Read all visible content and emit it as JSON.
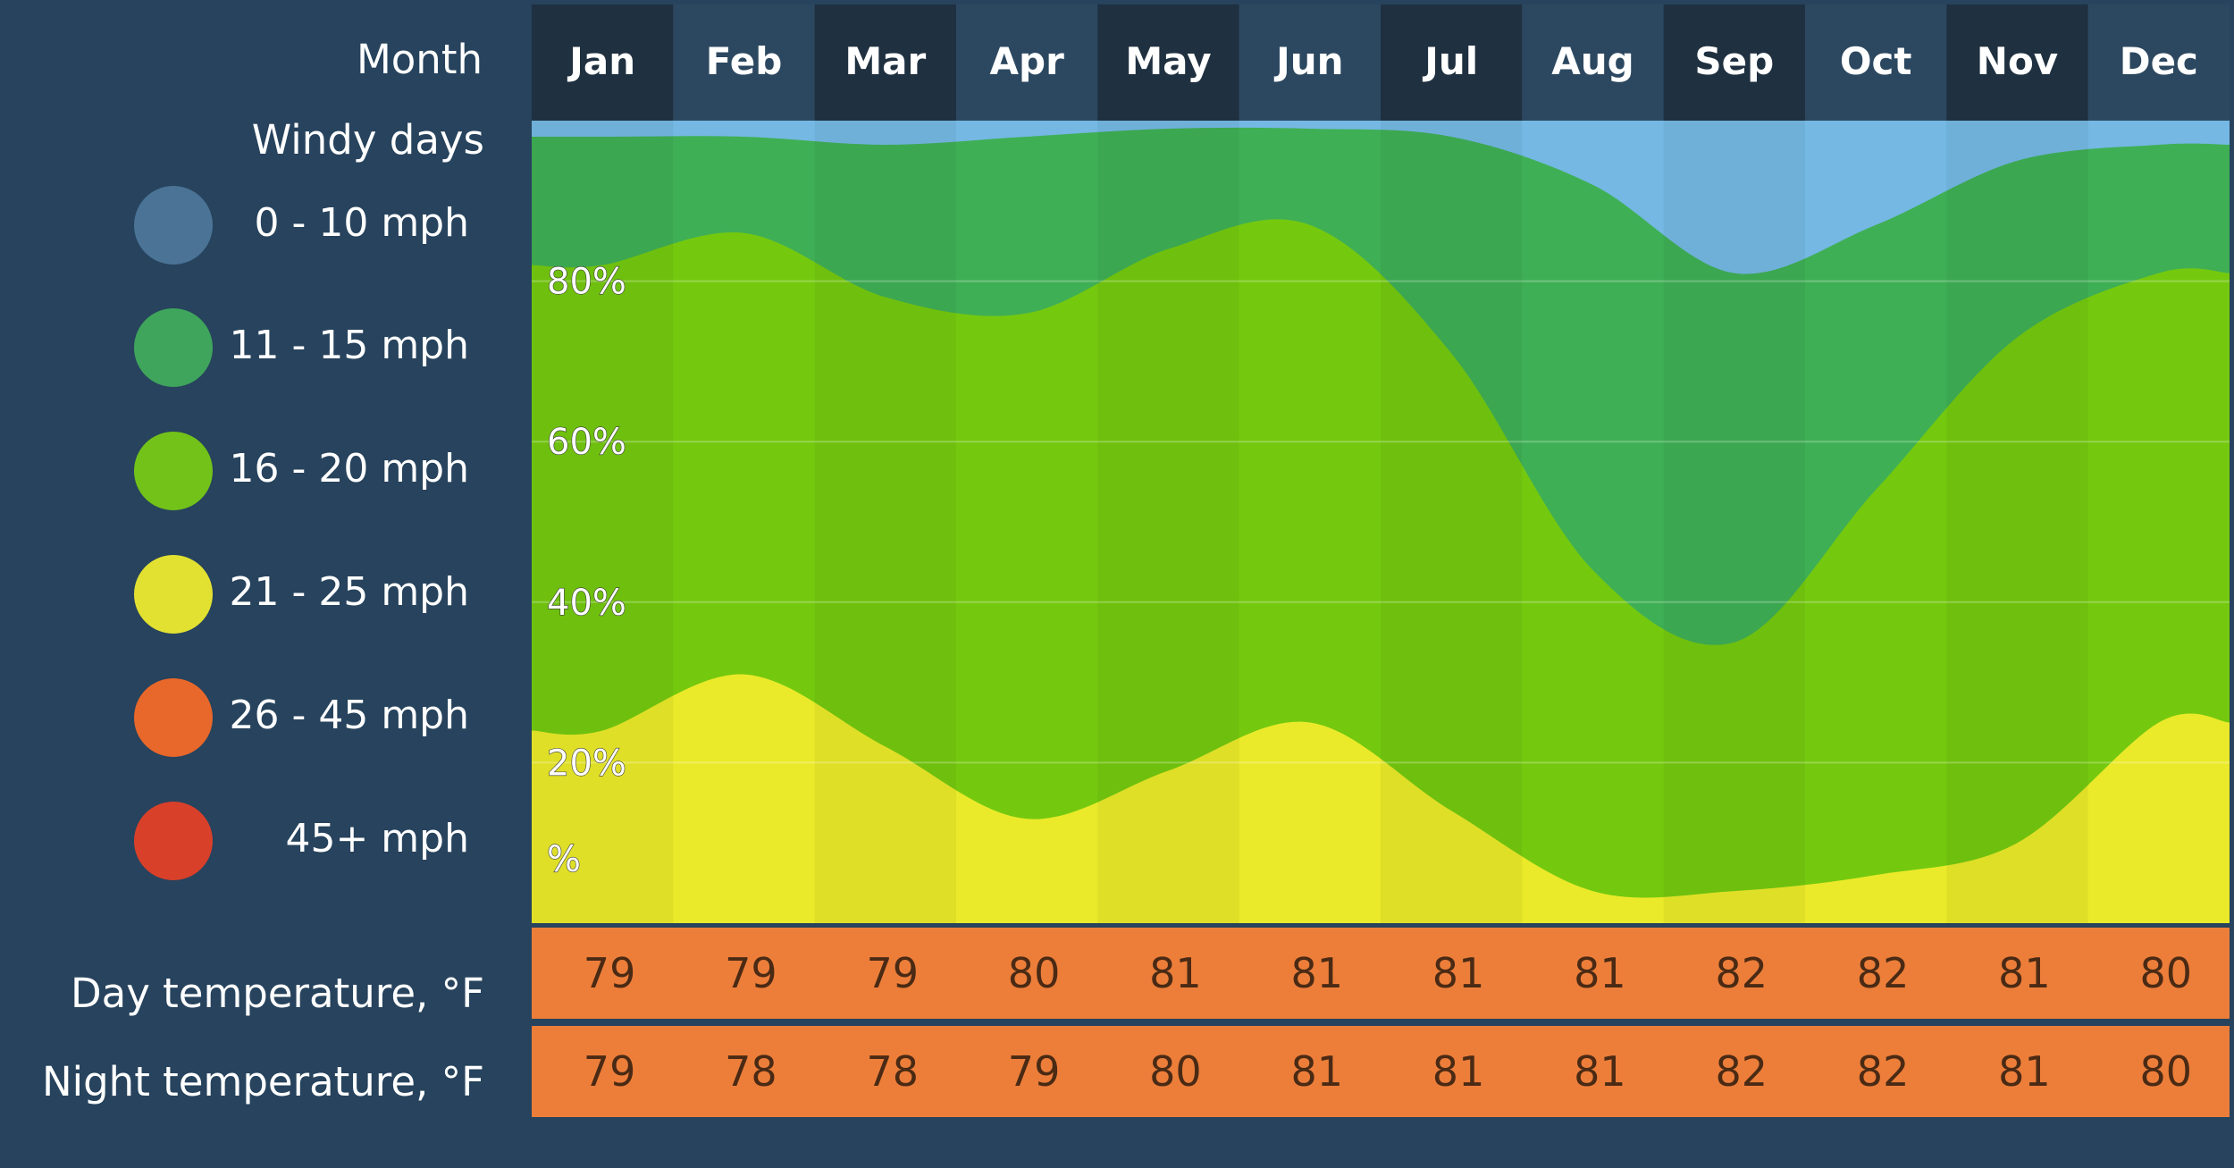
{
  "header": {
    "month_label": "Month",
    "windy_label": "Windy days"
  },
  "legend": [
    {
      "label": "0 - 10 mph",
      "color": "#4a7396"
    },
    {
      "label": "11 - 15 mph",
      "color": "#3fa45c"
    },
    {
      "label": "16 - 20 mph",
      "color": "#72c21a"
    },
    {
      "label": "21 - 25 mph",
      "color": "#e2e132"
    },
    {
      "label": "26 - 45 mph",
      "color": "#e8672a"
    },
    {
      "label": "45+ mph",
      "color": "#d8402a"
    }
  ],
  "rows": {
    "day_label": "Day temperature, °F",
    "night_label": "Night temperature, °F"
  },
  "chart_data": {
    "type": "area",
    "categories": [
      "Jan",
      "Feb",
      "Mar",
      "Apr",
      "May",
      "Jun",
      "Jul",
      "Aug",
      "Sep",
      "Oct",
      "Nov",
      "Dec"
    ],
    "ylim": [
      0,
      100
    ],
    "y_ticks": [
      "%",
      "20%",
      "40%",
      "60%",
      "80%"
    ],
    "series": [
      {
        "name": "21 - 25 mph",
        "color": "#eaea2a",
        "cumulative": [
          24,
          31,
          22,
          13,
          19,
          25,
          14,
          4,
          4,
          6,
          10,
          25
        ]
      },
      {
        "name": "16 - 20 mph",
        "color": "#74c90f",
        "cumulative": [
          82,
          86,
          78,
          76,
          84,
          87,
          71,
          44,
          35,
          54,
          73,
          81
        ]
      },
      {
        "name": "11 - 15 mph",
        "color": "#3faf55",
        "cumulative": [
          98,
          98,
          97,
          98,
          99,
          99,
          98,
          92,
          81,
          87,
          95,
          97
        ]
      },
      {
        "name": "0 - 10 mph",
        "color": "#74b8e3",
        "cumulative": [
          100,
          100,
          100,
          100,
          100,
          100,
          100,
          100,
          100,
          100,
          100,
          100
        ]
      }
    ],
    "day_temperature": [
      79,
      79,
      79,
      80,
      81,
      81,
      81,
      81,
      82,
      82,
      81,
      80
    ],
    "night_temperature": [
      79,
      78,
      78,
      79,
      80,
      81,
      81,
      81,
      82,
      82,
      81,
      80
    ],
    "temperature_color": "#ec7e3a",
    "header_dark_color": "#1f3040",
    "header_light_color": "#2c4860"
  }
}
